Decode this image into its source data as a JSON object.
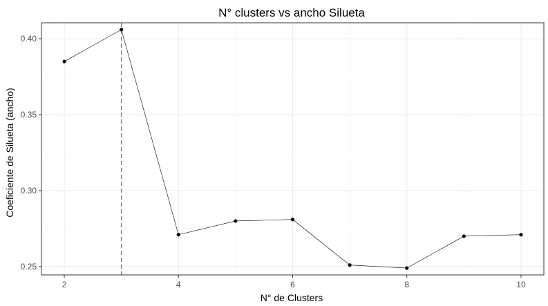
{
  "chart_data": {
    "type": "line",
    "title": "N° clusters vs ancho Silueta",
    "xlabel": "N° de Clusters",
    "ylabel": "Coeficiente de Silueta (ancho)",
    "x": [
      2,
      3,
      4,
      5,
      6,
      7,
      8,
      9,
      10
    ],
    "values": [
      0.385,
      0.406,
      0.271,
      0.28,
      0.281,
      0.251,
      0.249,
      0.27,
      0.271
    ],
    "xlim": [
      1.6,
      10.4
    ],
    "ylim": [
      0.2445,
      0.4105
    ],
    "x_ticks": [
      2,
      4,
      6,
      8,
      10
    ],
    "y_ticks": [
      0.25,
      0.3,
      0.35,
      0.4
    ],
    "x_tick_labels": [
      "2",
      "4",
      "6",
      "8",
      "10"
    ],
    "y_tick_labels": [
      "0.25",
      "0.30",
      "0.35",
      "0.40"
    ],
    "vline_x": 3,
    "grid": true,
    "legend": "none"
  }
}
